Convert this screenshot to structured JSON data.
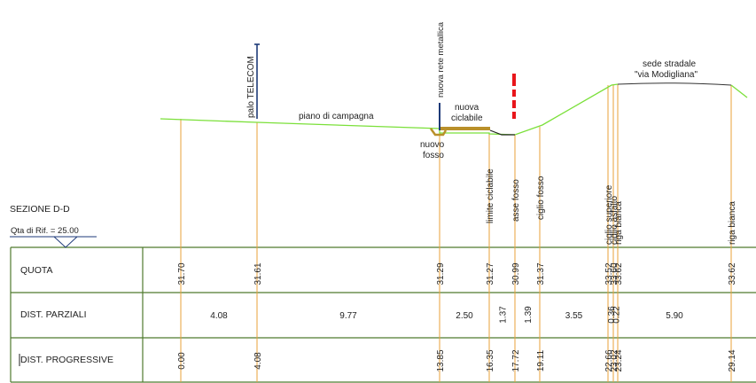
{
  "section_title": "SEZIONE D-D",
  "reference_level": "Qta di Rif. = 25.00",
  "rows": {
    "quota": "QUOTA",
    "parziali": "DIST. PARZIALI",
    "progressive": "DIST. PROGRESSIVE"
  },
  "terrain_labels": {
    "piano_di_campagna": "piano di campagna",
    "nuova_ciclabile_1": "nuova",
    "nuova_ciclabile_2": "ciclabile",
    "nuovo_fosso_1": "nuovo",
    "nuovo_fosso_2": "fosso",
    "sede_stradale_1": "sede stradale",
    "sede_stradale_2": "\"via Modigliana\"",
    "palo_telecom": "palo TELECOM",
    "nuova_rete_metallica": "nuova rete metallica"
  },
  "colors": {
    "ground_line": "#7be03a",
    "station_line": "#e8a23a",
    "bike_path": "#b9902a",
    "limit_marker": "#e8161b",
    "pole": "#1e3a78",
    "table_border": "#4f7a2e",
    "road": "#333333"
  },
  "stations": [
    {
      "quota": "31.70",
      "progressive": "0.00",
      "label": ""
    },
    {
      "quota": "31.61",
      "progressive": "4.08",
      "label": ""
    },
    {
      "quota": "31.29",
      "progressive": "13.85",
      "label": ""
    },
    {
      "quota": "31.27",
      "progressive": "16.35",
      "label": "limite ciclabile"
    },
    {
      "quota": "30.99",
      "progressive": "17.72",
      "label": "asse fosso"
    },
    {
      "quota": "31.37",
      "progressive": "19.11",
      "label": "ciglio fosso"
    },
    {
      "quota": "33.52",
      "progressive": "22.66",
      "label": "ciglio superiore"
    },
    {
      "quota": "33.60",
      "progressive": "23.02",
      "label": "ciglio asfalto"
    },
    {
      "quota": "33.62",
      "progressive": "23.24",
      "label": "riga bianca"
    },
    {
      "quota": "33.62",
      "progressive": "29.14",
      "label": "riga bianca"
    }
  ],
  "partials": [
    "4.08",
    "9.77",
    "2.50",
    "1.37",
    "1.39",
    "3.55",
    "0.36",
    "0.22",
    "5.90"
  ]
}
